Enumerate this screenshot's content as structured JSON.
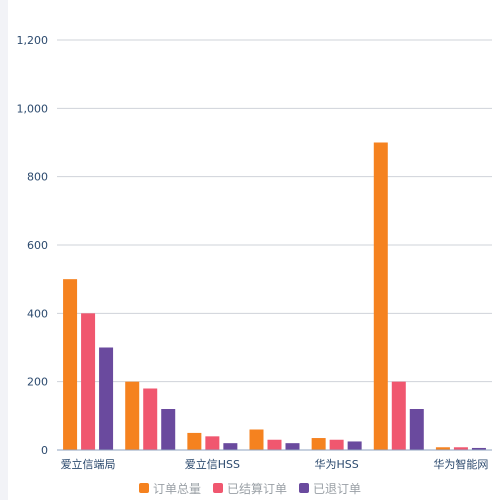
{
  "chart_data": {
    "type": "bar",
    "categories": [
      "爱立信端局",
      "",
      "爱立信HSS",
      "",
      "华为HSS",
      "",
      "华为智能网"
    ],
    "series": [
      {
        "name": "订单总量",
        "color": "#f5821f",
        "values": [
          500,
          200,
          50,
          60,
          35,
          900,
          8
        ]
      },
      {
        "name": "已结算订单",
        "color": "#f0576f",
        "values": [
          400,
          180,
          40,
          30,
          30,
          200,
          8
        ]
      },
      {
        "name": "已退订单",
        "color": "#6a4a9e",
        "values": [
          300,
          120,
          20,
          20,
          25,
          120,
          6
        ]
      }
    ],
    "y_ticks": [
      "0",
      "200",
      "400",
      "600",
      "800",
      "1,000",
      "1,200"
    ],
    "ylim": [
      0,
      1200
    ],
    "grid": true,
    "legend_position": "bottom-center"
  }
}
